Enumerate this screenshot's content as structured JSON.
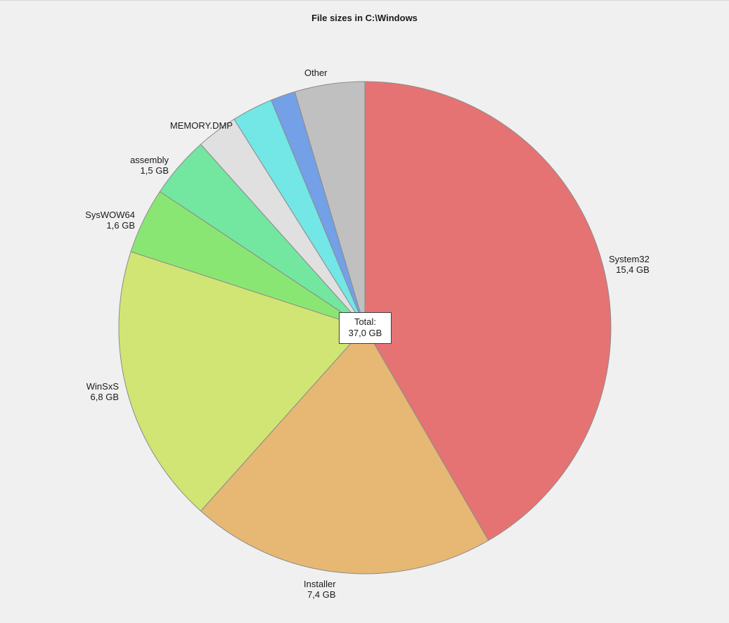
{
  "chart_data": {
    "type": "pie",
    "title": "File sizes in C:\\Windows",
    "unit": "GB",
    "total": {
      "label": "Total:",
      "value": "37,0 GB"
    },
    "slices": [
      {
        "name": "System32",
        "value_label": "15,4 GB",
        "value": 15.4,
        "color": "#e57373"
      },
      {
        "name": "Installer",
        "value_label": "7,4 GB",
        "value": 7.4,
        "color": "#e6b873"
      },
      {
        "name": "WinSxS",
        "value_label": "6,8 GB",
        "value": 6.8,
        "color": "#d0e573"
      },
      {
        "name": "SysWOW64",
        "value_label": "1,6 GB",
        "value": 1.6,
        "color": "#8ae673"
      },
      {
        "name": "assembly",
        "value_label": "1,5 GB",
        "value": 1.5,
        "color": "#73e6a0"
      },
      {
        "name": "MEMORY.DMP",
        "value_label": "",
        "value": 1.0,
        "color": "#e0e0e0"
      },
      {
        "name": "",
        "value_label": "",
        "value": 1.0,
        "color": "#73e6e6"
      },
      {
        "name": "",
        "value_label": "",
        "value": 0.6,
        "color": "#73a0e6"
      },
      {
        "name": "Other",
        "value_label": "",
        "value": 1.7,
        "color": "#c0c0c0"
      }
    ]
  }
}
